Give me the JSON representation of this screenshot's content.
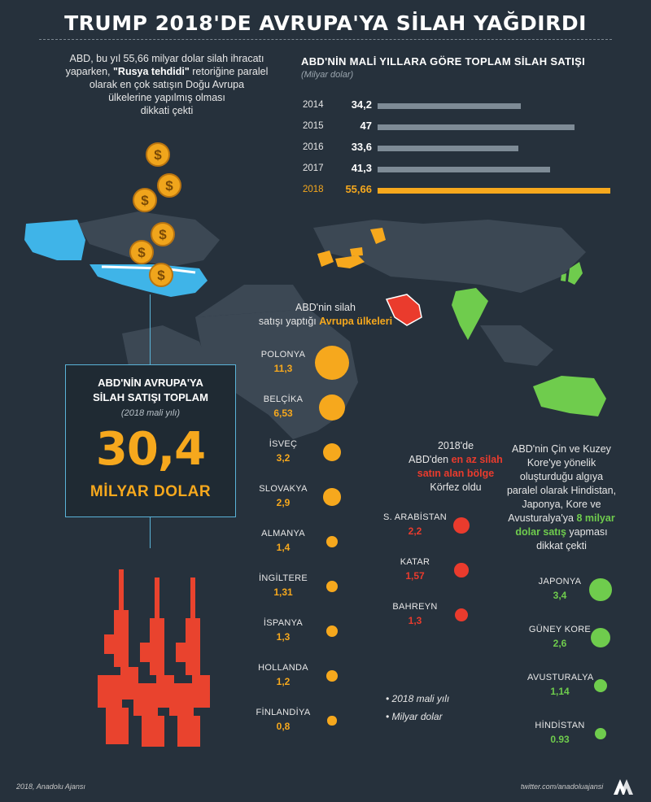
{
  "title": "TRUMP 2018'DE AVRUPA'YA SİLAH YAĞDIRDI",
  "intro": {
    "line1": "ABD, bu yıl 55,66 milyar dolar silah ihracatı",
    "line2_pre": "yaparken, ",
    "line2_bold": "\"Rusya tehdidi\"",
    "line2_post": " retoriğine paralel",
    "line3": "olarak en çok satışın Doğu Avrupa",
    "line4": "ülkelerine yapılmış olması",
    "line5": "dikkati çekti"
  },
  "annual": {
    "title": "ABD'NİN MALİ YILLARA GÖRE TOPLAM SİLAH SATIŞI",
    "subtitle": "(Milyar dolar)"
  },
  "chart_data": [
    {
      "type": "bar",
      "title": "ABD'NİN MALİ YILLARA GÖRE TOPLAM SİLAH SATIŞI",
      "unit": "(Milyar dolar)",
      "categories": [
        "2014",
        "2015",
        "2016",
        "2017",
        "2018"
      ],
      "labels": [
        "34,2",
        "47",
        "33,6",
        "41,3",
        "55,66"
      ],
      "values": [
        34.2,
        47,
        33.6,
        41.3,
        55.66
      ],
      "highlight": "2018",
      "colors": {
        "default": "#7e8b96",
        "highlight": "#f6a81d"
      },
      "xlim": [
        0,
        56
      ]
    },
    {
      "type": "scatter",
      "title": "ABD'nin silah satışı yaptığı Avrupa ülkeleri",
      "categories": [
        "POLONYA",
        "BELÇİKA",
        "İSVEÇ",
        "SLOVAKYA",
        "ALMANYA",
        "İNGİLTERE",
        "İSPANYA",
        "HOLLANDA",
        "FİNLANDİYA"
      ],
      "labels": [
        "11,3",
        "6,53",
        "3,2",
        "2,9",
        "1,4",
        "1,31",
        "1,3",
        "1,2",
        "0,8"
      ],
      "values": [
        11.3,
        6.53,
        3.2,
        2.9,
        1.4,
        1.31,
        1.3,
        1.2,
        0.8
      ],
      "color": "#f6a81d"
    },
    {
      "type": "scatter",
      "title": "ABD'den en az silah satın alan bölge Körfez oldu",
      "categories": [
        "S. ARABİSTAN",
        "KATAR",
        "BAHREYN"
      ],
      "labels": [
        "2,2",
        "1,57",
        "1,3"
      ],
      "values": [
        2.2,
        1.57,
        1.3
      ],
      "color": "#ea3b2d"
    },
    {
      "type": "scatter",
      "title": "8 milyar dolar satış",
      "categories": [
        "JAPONYA",
        "GÜNEY KORE",
        "AVUSTURALYA",
        "HİNDİSTAN"
      ],
      "labels": [
        "3,4",
        "2,6",
        "1,14",
        "0.93"
      ],
      "values": [
        3.4,
        2.6,
        1.14,
        0.93
      ],
      "color": "#6fcc4d"
    }
  ],
  "europe": {
    "h1": "ABD'nin silah",
    "h2_pre": "satışı yaptığı ",
    "h2_hl": "Avrupa ülkeleri"
  },
  "gulf": {
    "h1": "2018'de",
    "h2_pre": "ABD'den ",
    "h2_hl": "en az silah",
    "h3": "satın alan bölge",
    "h4": "Körfez oldu"
  },
  "asia": {
    "h1": "ABD'nin Çin ve Kuzey",
    "h2": "Kore'ye yönelik",
    "h3": "oluşturduğu algıya",
    "h4": "paralel olarak Hindistan,",
    "h5": "Japonya, Kore ve",
    "h6_pre": "Avusturalya'ya ",
    "h6_hl": "8 milyar",
    "h7_hl": "dolar satış",
    "h7_post": " yapması",
    "h8": "dikkat çekti"
  },
  "total": {
    "h1": "ABD'NİN AVRUPA'YA",
    "h2": "SİLAH SATIŞI TOPLAM",
    "sub": "(2018 mali yılı)",
    "value": "30,4",
    "unit": "MİLYAR DOLAR"
  },
  "notes": [
    "2018 mali yılı",
    "Milyar dolar"
  ],
  "footer": {
    "left": "2018, Anadolu Ajansı",
    "right": "twitter.com/anadoluajansi"
  },
  "colors": {
    "background": "#26313c",
    "accent": "#f6a81d",
    "gulf": "#ea3b2d",
    "asia": "#6fcc4d",
    "usa": "#3fb4e8",
    "bars": "#7e8b96"
  }
}
